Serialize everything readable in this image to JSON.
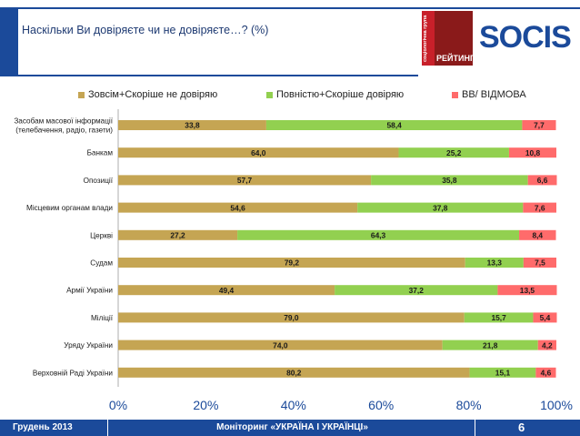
{
  "header": {
    "title": "Наскільки Ви довіряєте чи не довіряєте…? (%)"
  },
  "logos": {
    "reyting_label": "РЕЙТИНГ",
    "reyting_side_text": "соціологічна група",
    "socis_label": "SOCIS"
  },
  "colors": {
    "brand_blue": "#1b4a9a",
    "distrust": "#c5a553",
    "trust": "#92d050",
    "dk": "#ff6b6b"
  },
  "chart_data": {
    "type": "bar",
    "orientation": "horizontal",
    "stacked": true,
    "categories": [
      "Засобам масової інформації (телебачення, радіо, газети)",
      "Банкам",
      "Опозиції",
      "Місцевим органам влади",
      "Церкві",
      "Судам",
      "Армії України",
      "Міліції",
      "Уряду України",
      "Верховній Раді України"
    ],
    "series": [
      {
        "name": "Зовсім+Скоріше не довіряю",
        "color": "#c5a553",
        "values": [
          33.8,
          64.0,
          57.7,
          54.6,
          27.2,
          79.2,
          49.4,
          79.0,
          74.0,
          80.2
        ],
        "labels": [
          "33,8",
          "64,0",
          "57,7",
          "54,6",
          "27,2",
          "79,2",
          "49,4",
          "79,0",
          "74,0",
          "80,2"
        ]
      },
      {
        "name": "Повністю+Скоріше довіряю",
        "color": "#92d050",
        "values": [
          58.4,
          25.2,
          35.8,
          37.8,
          64.3,
          13.3,
          37.2,
          15.7,
          21.8,
          15.1
        ],
        "labels": [
          "58,4",
          "25,2",
          "35,8",
          "37,8",
          "64,3",
          "13,3",
          "37,2",
          "15,7",
          "21,8",
          "15,1"
        ]
      },
      {
        "name": "ВВ/ ВІДМОВА",
        "color": "#ff6b6b",
        "values": [
          7.7,
          10.8,
          6.6,
          7.6,
          8.4,
          7.5,
          13.5,
          5.4,
          4.2,
          4.6
        ],
        "labels": [
          "7,7",
          "10,8",
          "6,6",
          "7,6",
          "8,4",
          "7,5",
          "13,5",
          "5,4",
          "4,2",
          "4,6"
        ]
      }
    ],
    "xlim": [
      0,
      100
    ],
    "xticks": [
      "0%",
      "20%",
      "40%",
      "60%",
      "80%",
      "100%"
    ],
    "legend_position": "top",
    "grid": false
  },
  "footer": {
    "date": "Грудень 2013",
    "title": "Моніторинг «УКРАЇНА І УКРАЇНЦІ»",
    "page": "6"
  }
}
